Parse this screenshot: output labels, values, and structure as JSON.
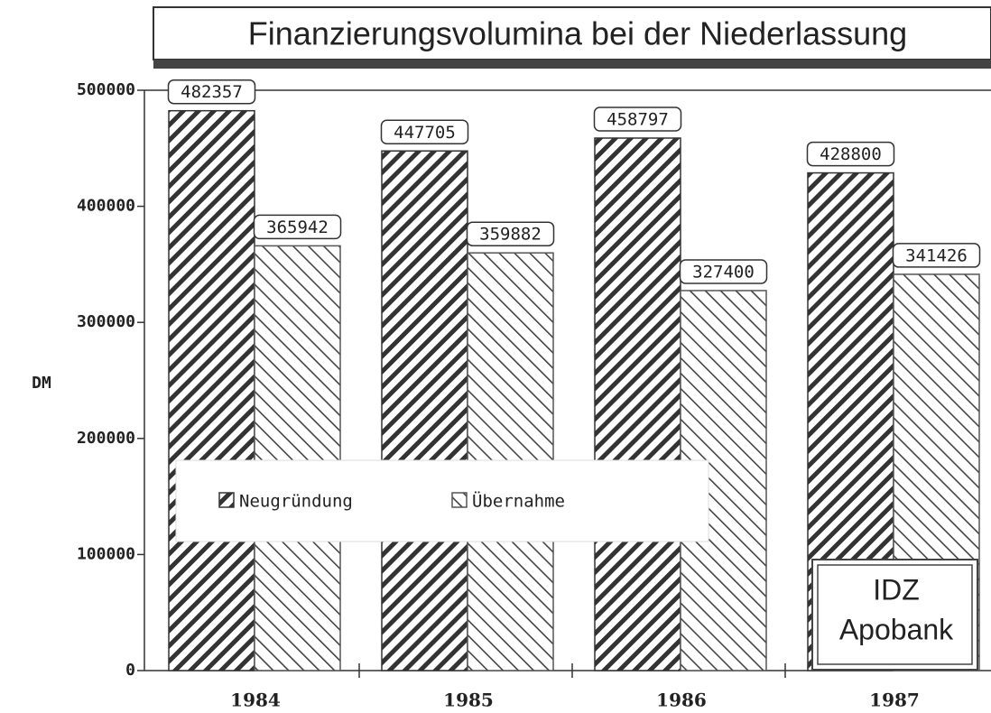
{
  "chart_data": {
    "type": "bar",
    "title": "Finanzierungsvolumina bei der Niederlassung",
    "y_label": "DM",
    "categories": [
      "1984",
      "1985",
      "1986",
      "1987"
    ],
    "series": [
      {
        "name": "Neugründung",
        "color": "#333333",
        "values": [
          482357,
          447705,
          458797,
          428800
        ]
      },
      {
        "name": "Übernahme",
        "color": "#555555",
        "values": [
          365942,
          359882,
          327400,
          341426
        ]
      }
    ],
    "ylim": [
      0,
      500000
    ],
    "yticks": [
      0,
      100000,
      200000,
      300000,
      400000,
      500000
    ],
    "annotation": [
      "IDZ",
      "Apobank"
    ]
  }
}
